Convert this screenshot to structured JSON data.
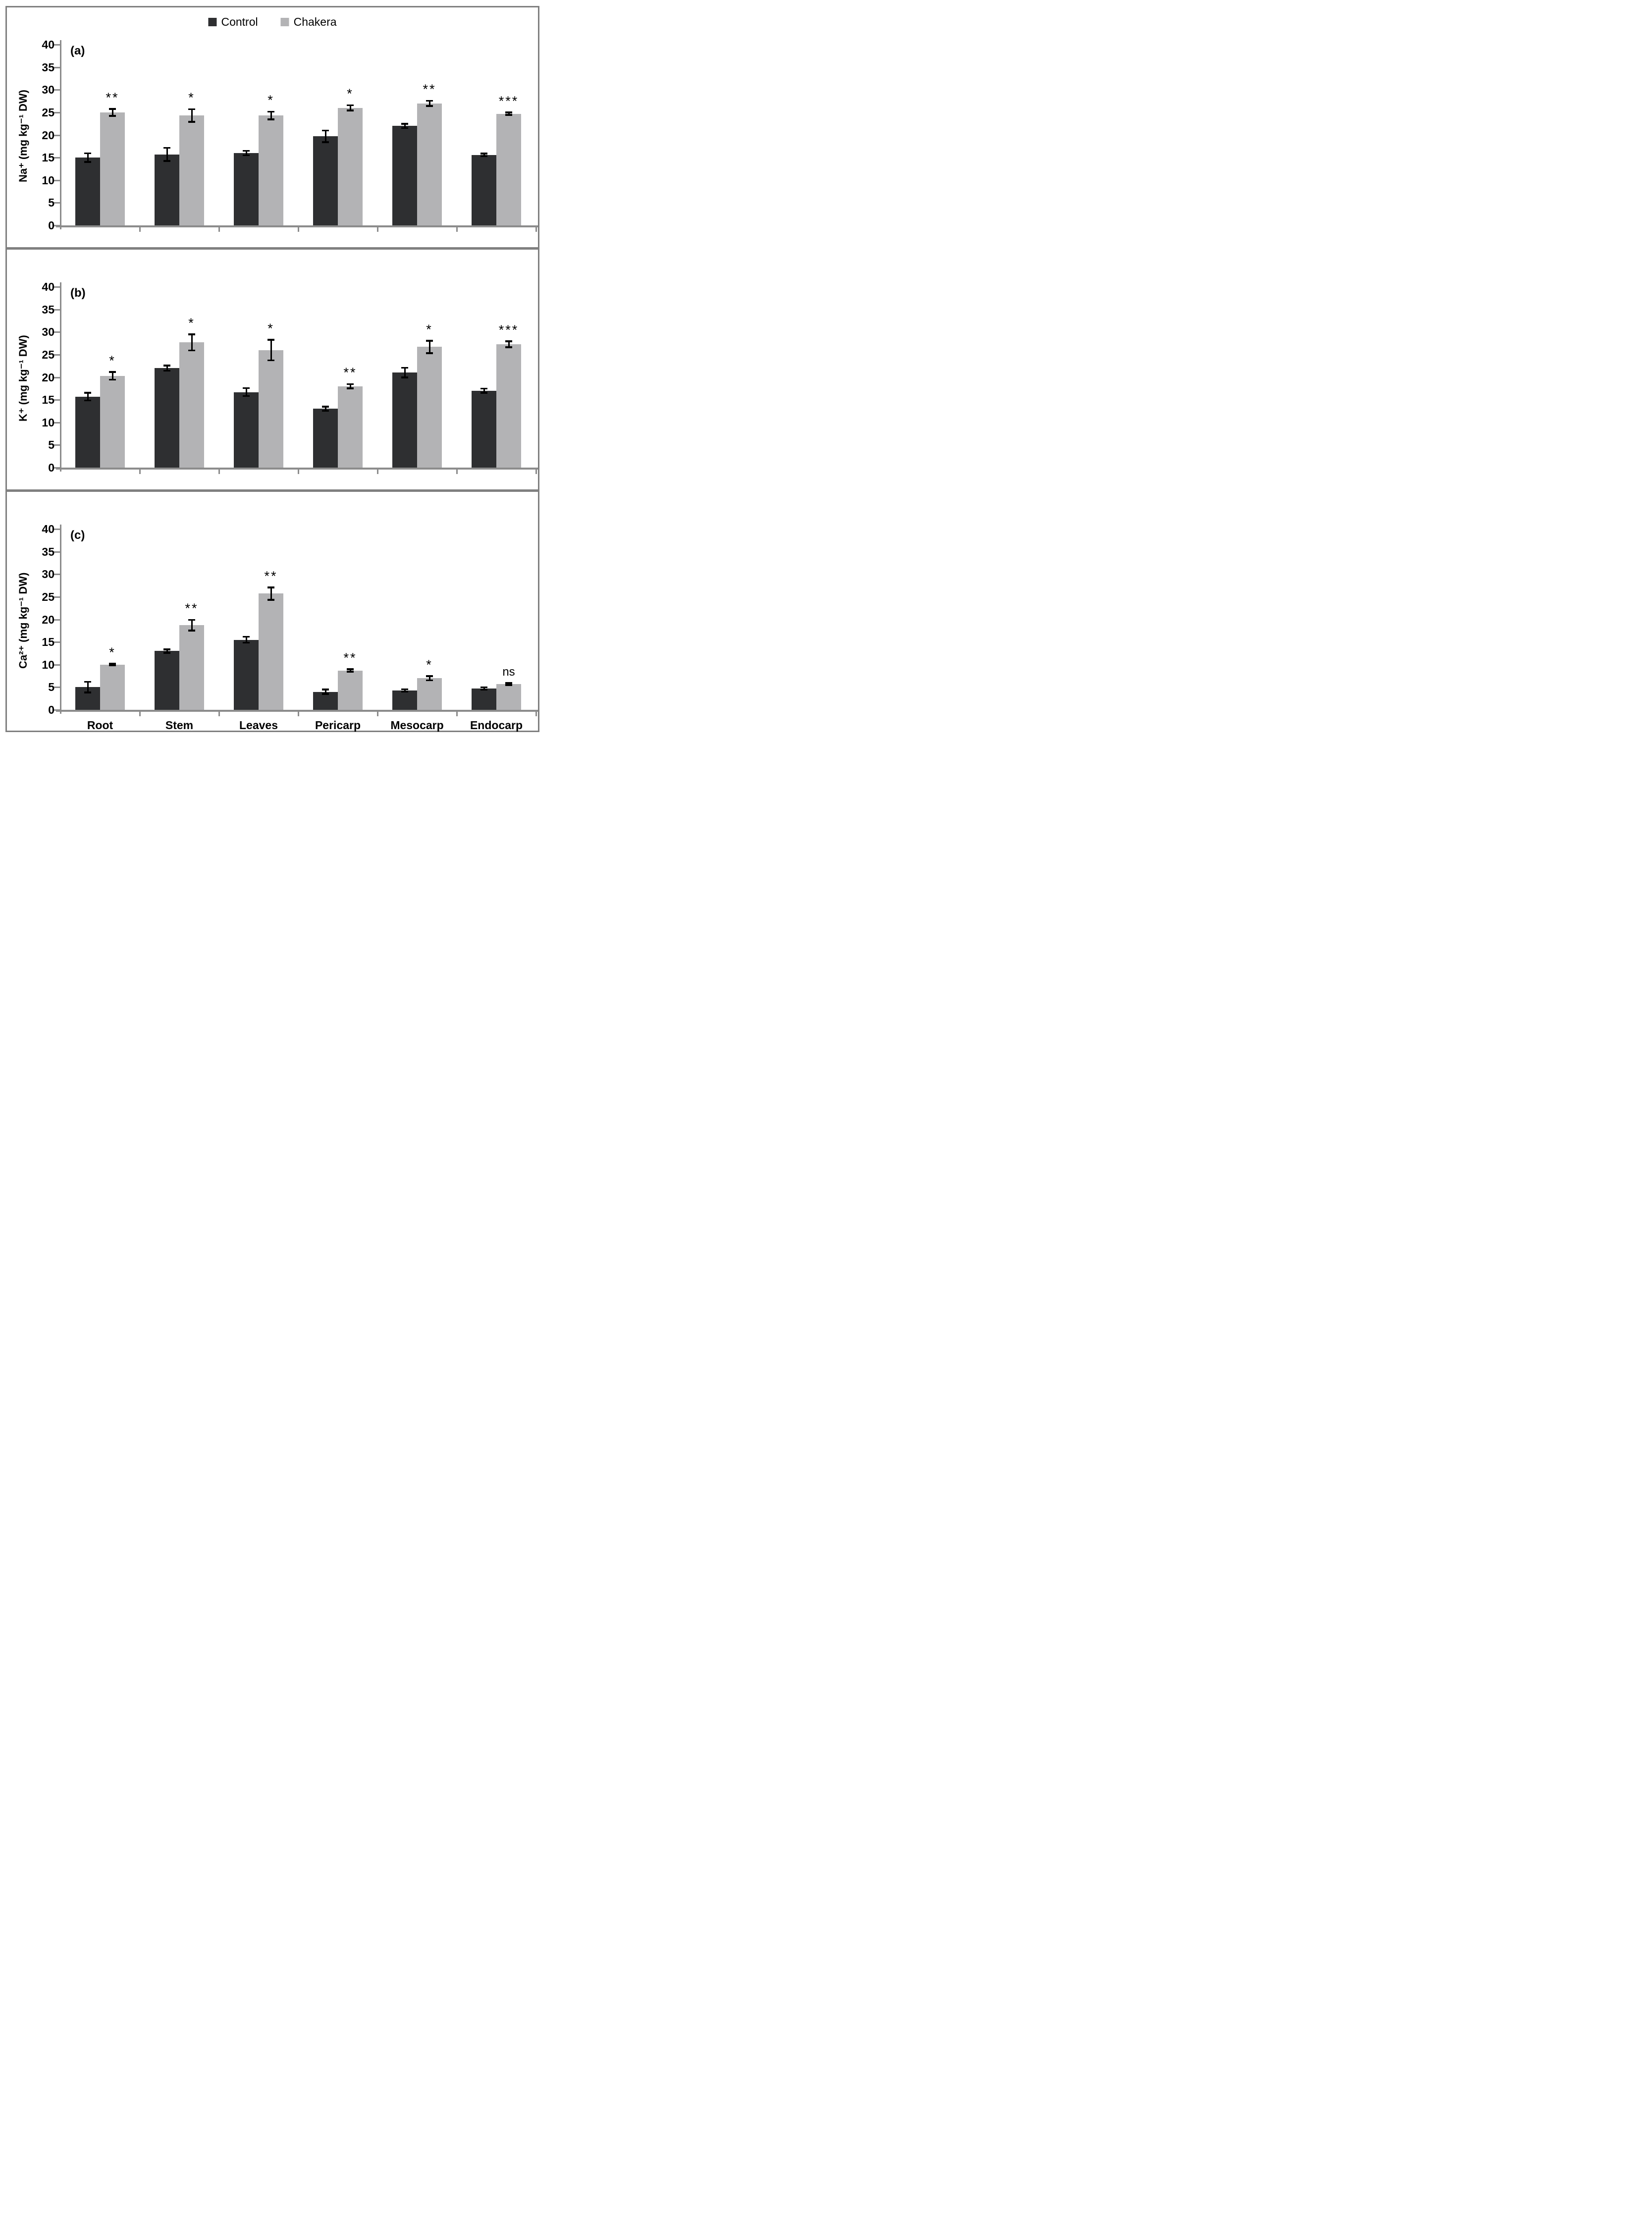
{
  "figure": {
    "background": "#ffffff",
    "frame_color": "#808080"
  },
  "colors": {
    "control": "#2e2f31",
    "chakera": "#b3b3b5",
    "axis": "#8c8c8c",
    "error_bar": "#000000",
    "text": "#000000"
  },
  "legend": {
    "items": [
      {
        "label": "Control",
        "color": "#2e2f31"
      },
      {
        "label": "Chakera",
        "color": "#b3b3b5"
      }
    ]
  },
  "chart_data": [
    {
      "type": "bar",
      "panel_label": "(a)",
      "ylabel": "Na⁺ (mg kg⁻¹ DW)",
      "xlabel": "",
      "categories": [
        "Root",
        "Stem",
        "Leaves",
        "Pericarp",
        "Mesocarp",
        "Endocarp"
      ],
      "show_category_labels": false,
      "ylim": [
        0,
        40
      ],
      "ytick_step": 5,
      "yticks": [
        0,
        5,
        10,
        15,
        20,
        25,
        30,
        35,
        40
      ],
      "grid": false,
      "legend_position": "top-center",
      "series": [
        {
          "name": "Control",
          "values": [
            15.0,
            15.7,
            16.0,
            19.7,
            22.0,
            15.6
          ],
          "errors": [
            1.0,
            1.5,
            0.5,
            1.3,
            0.5,
            0.3
          ]
        },
        {
          "name": "Chakera",
          "values": [
            25.0,
            24.3,
            24.3,
            26.0,
            27.0,
            24.7
          ],
          "errors": [
            0.8,
            1.4,
            0.9,
            0.6,
            0.6,
            0.3
          ]
        }
      ],
      "significance": [
        "**",
        "*",
        "*",
        "*",
        "**",
        "***"
      ]
    },
    {
      "type": "bar",
      "panel_label": "(b)",
      "ylabel": "K⁺ (mg kg⁻¹ DW)",
      "xlabel": "",
      "categories": [
        "Root",
        "Stem",
        "Leaves",
        "Pericarp",
        "Mesocarp",
        "Endocarp"
      ],
      "show_category_labels": false,
      "ylim": [
        0,
        40
      ],
      "ytick_step": 5,
      "yticks": [
        0,
        5,
        10,
        15,
        20,
        25,
        30,
        35,
        40
      ],
      "grid": false,
      "legend_position": "none",
      "series": [
        {
          "name": "Control",
          "values": [
            15.7,
            22.0,
            16.7,
            13.0,
            21.0,
            17.0
          ],
          "errors": [
            0.9,
            0.6,
            0.9,
            0.5,
            1.1,
            0.5
          ]
        },
        {
          "name": "Chakera",
          "values": [
            20.3,
            27.7,
            26.0,
            18.0,
            26.7,
            27.3
          ],
          "errors": [
            0.9,
            1.8,
            2.3,
            0.5,
            1.4,
            0.7
          ]
        }
      ],
      "significance": [
        "*",
        "*",
        "*",
        "**",
        "*",
        "***"
      ]
    },
    {
      "type": "bar",
      "panel_label": "(c)",
      "ylabel": "Ca²⁺ (mg kg⁻¹ DW)",
      "xlabel": "",
      "categories": [
        "Root",
        "Stem",
        "Leaves",
        "Pericarp",
        "Mesocarp",
        "Endocarp"
      ],
      "show_category_labels": true,
      "ylim": [
        0,
        40
      ],
      "ytick_step": 5,
      "yticks": [
        0,
        5,
        10,
        15,
        20,
        25,
        30,
        35,
        40
      ],
      "grid": false,
      "legend_position": "none",
      "series": [
        {
          "name": "Control",
          "values": [
            5.0,
            13.0,
            15.5,
            4.0,
            4.3,
            4.7
          ],
          "errors": [
            1.2,
            0.4,
            0.7,
            0.5,
            0.3,
            0.3
          ]
        },
        {
          "name": "Chakera",
          "values": [
            10.0,
            18.7,
            25.7,
            8.7,
            7.0,
            5.7
          ],
          "errors": [
            0.2,
            1.2,
            1.4,
            0.3,
            0.5,
            0.25
          ]
        }
      ],
      "significance": [
        "*",
        "**",
        "**",
        "**",
        "*",
        "ns"
      ]
    }
  ]
}
